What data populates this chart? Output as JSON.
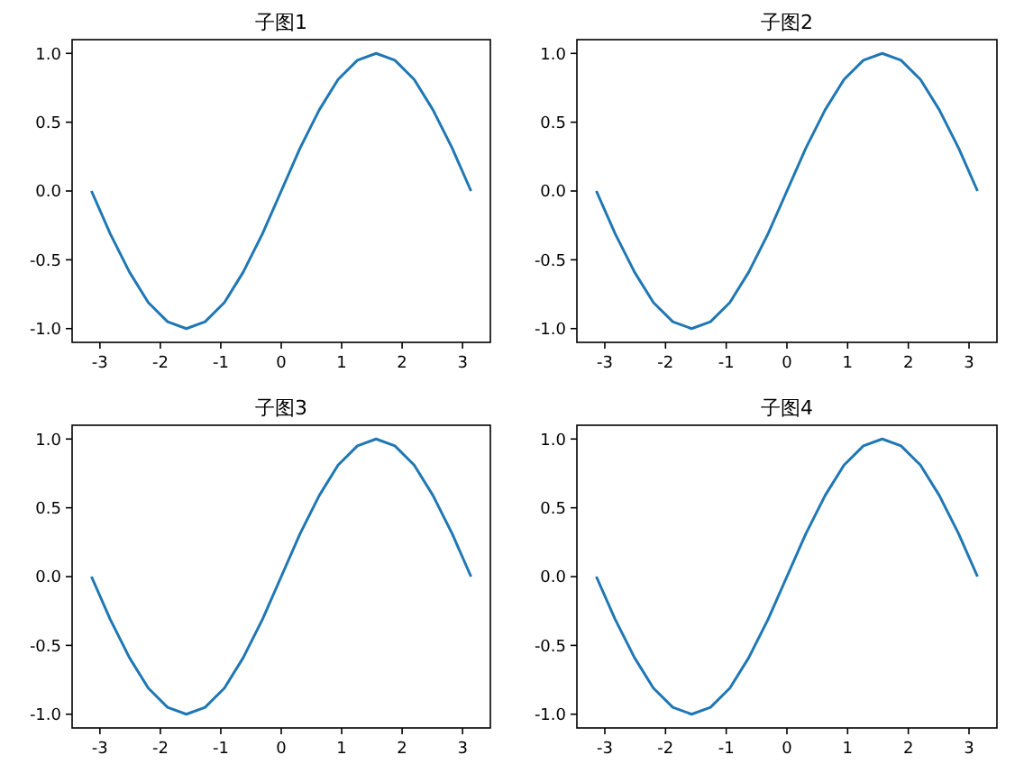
{
  "chart_data": [
    {
      "type": "line",
      "title": "子图1",
      "x": [
        -3.14,
        -2.83,
        -2.51,
        -2.2,
        -1.88,
        -1.57,
        -1.26,
        -0.94,
        -0.63,
        -0.31,
        0,
        0.31,
        0.63,
        0.94,
        1.26,
        1.57,
        1.88,
        2.2,
        2.51,
        2.83,
        3.14
      ],
      "series": [
        {
          "color": "#1f77b4",
          "values": [
            0,
            -0.31,
            -0.59,
            -0.81,
            -0.95,
            -1,
            -0.95,
            -0.81,
            -0.59,
            -0.31,
            0,
            0.31,
            0.59,
            0.81,
            0.95,
            1,
            0.95,
            0.81,
            0.59,
            0.31,
            0
          ]
        }
      ],
      "xlim": [
        -3.46,
        3.46
      ],
      "ylim": [
        -1.1,
        1.1
      ],
      "xticks": [
        -3,
        -2,
        -1,
        0,
        1,
        2,
        3
      ],
      "yticks": [
        {
          "value": -1,
          "label": "-1.0"
        },
        {
          "value": -0.5,
          "label": "-0.5"
        },
        {
          "value": 0,
          "label": "0.0"
        },
        {
          "value": 0.5,
          "label": "0.5"
        },
        {
          "value": 1,
          "label": "1.0"
        }
      ]
    },
    {
      "type": "line",
      "title": "子图2",
      "x": [
        -3.14,
        -2.83,
        -2.51,
        -2.2,
        -1.88,
        -1.57,
        -1.26,
        -0.94,
        -0.63,
        -0.31,
        0,
        0.31,
        0.63,
        0.94,
        1.26,
        1.57,
        1.88,
        2.2,
        2.51,
        2.83,
        3.14
      ],
      "series": [
        {
          "color": "#1f77b4",
          "values": [
            0,
            -0.31,
            -0.59,
            -0.81,
            -0.95,
            -1,
            -0.95,
            -0.81,
            -0.59,
            -0.31,
            0,
            0.31,
            0.59,
            0.81,
            0.95,
            1,
            0.95,
            0.81,
            0.59,
            0.31,
            0
          ]
        }
      ],
      "xlim": [
        -3.46,
        3.46
      ],
      "ylim": [
        -1.1,
        1.1
      ],
      "xticks": [
        -3,
        -2,
        -1,
        0,
        1,
        2,
        3
      ],
      "yticks": [
        {
          "value": -1,
          "label": "-1.0"
        },
        {
          "value": -0.5,
          "label": "-0.5"
        },
        {
          "value": 0,
          "label": "0.0"
        },
        {
          "value": 0.5,
          "label": "0.5"
        },
        {
          "value": 1,
          "label": "1.0"
        }
      ]
    },
    {
      "type": "line",
      "title": "子图3",
      "x": [
        -3.14,
        -2.83,
        -2.51,
        -2.2,
        -1.88,
        -1.57,
        -1.26,
        -0.94,
        -0.63,
        -0.31,
        0,
        0.31,
        0.63,
        0.94,
        1.26,
        1.57,
        1.88,
        2.2,
        2.51,
        2.83,
        3.14
      ],
      "series": [
        {
          "color": "#1f77b4",
          "values": [
            0,
            -0.31,
            -0.59,
            -0.81,
            -0.95,
            -1,
            -0.95,
            -0.81,
            -0.59,
            -0.31,
            0,
            0.31,
            0.59,
            0.81,
            0.95,
            1,
            0.95,
            0.81,
            0.59,
            0.31,
            0
          ]
        }
      ],
      "xlim": [
        -3.46,
        3.46
      ],
      "ylim": [
        -1.1,
        1.1
      ],
      "xticks": [
        -3,
        -2,
        -1,
        0,
        1,
        2,
        3
      ],
      "yticks": [
        {
          "value": -1,
          "label": "-1.0"
        },
        {
          "value": -0.5,
          "label": "-0.5"
        },
        {
          "value": 0,
          "label": "0.0"
        },
        {
          "value": 0.5,
          "label": "0.5"
        },
        {
          "value": 1,
          "label": "1.0"
        }
      ]
    },
    {
      "type": "line",
      "title": "子图4",
      "x": [
        -3.14,
        -2.83,
        -2.51,
        -2.2,
        -1.88,
        -1.57,
        -1.26,
        -0.94,
        -0.63,
        -0.31,
        0,
        0.31,
        0.63,
        0.94,
        1.26,
        1.57,
        1.88,
        2.2,
        2.51,
        2.83,
        3.14
      ],
      "series": [
        {
          "color": "#1f77b4",
          "values": [
            0,
            -0.31,
            -0.59,
            -0.81,
            -0.95,
            -1,
            -0.95,
            -0.81,
            -0.59,
            -0.31,
            0,
            0.31,
            0.59,
            0.81,
            0.95,
            1,
            0.95,
            0.81,
            0.59,
            0.31,
            0
          ]
        }
      ],
      "xlim": [
        -3.46,
        3.46
      ],
      "ylim": [
        -1.1,
        1.1
      ],
      "xticks": [
        -3,
        -2,
        -1,
        0,
        1,
        2,
        3
      ],
      "yticks": [
        {
          "value": -1,
          "label": "-1.0"
        },
        {
          "value": -0.5,
          "label": "-0.5"
        },
        {
          "value": 0,
          "label": "0.0"
        },
        {
          "value": 0.5,
          "label": "0.5"
        },
        {
          "value": 1,
          "label": "1.0"
        }
      ]
    }
  ]
}
